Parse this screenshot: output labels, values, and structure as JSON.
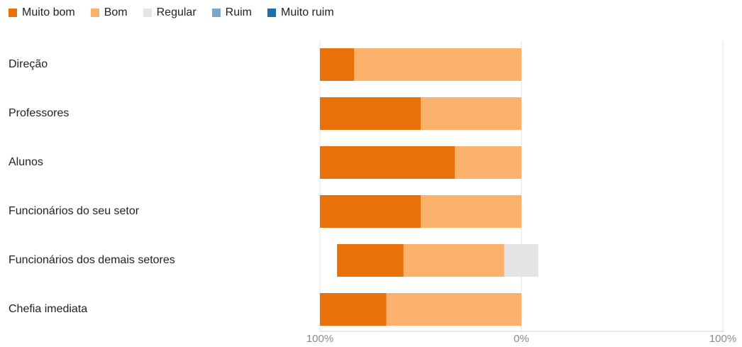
{
  "chart_data": {
    "type": "bar",
    "orientation": "horizontal-diverging",
    "legend_position": "top-left",
    "grid": true,
    "categories": [
      "Direção",
      "Professores",
      "Alunos",
      "Funcionários do seu setor",
      "Funcionários dos demais setores",
      "Chefia imediata"
    ],
    "series": [
      {
        "name": "Muito bom",
        "color": "#e8710a",
        "side": "positive",
        "values": [
          17,
          50,
          67,
          50,
          33,
          33
        ]
      },
      {
        "name": "Bom",
        "color": "#fbb26d",
        "side": "positive",
        "values": [
          83,
          50,
          33,
          50,
          50,
          67
        ]
      },
      {
        "name": "Regular",
        "color": "#e4e4e4",
        "side": "negative",
        "values": [
          0,
          0,
          0,
          0,
          17,
          0
        ]
      },
      {
        "name": "Ruim",
        "color": "#7ba7cc",
        "side": "negative",
        "values": [
          0,
          0,
          0,
          0,
          0,
          0
        ]
      },
      {
        "name": "Muito ruim",
        "color": "#1f6fa8",
        "side": "negative",
        "values": [
          0,
          0,
          0,
          0,
          0,
          0
        ]
      }
    ],
    "xlim": [
      -100,
      100
    ],
    "x_ticks": [
      "100%",
      "0%",
      "100%"
    ],
    "regular_split": "half"
  }
}
